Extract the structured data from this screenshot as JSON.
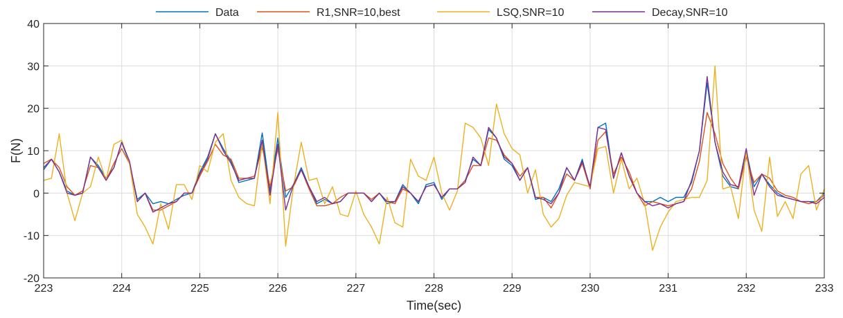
{
  "chart_data": {
    "type": "line",
    "xlabel": "Time(sec)",
    "ylabel": "F(N)",
    "xlim": [
      223,
      233
    ],
    "ylim": [
      -20,
      40
    ],
    "x_ticks": [
      223,
      224,
      225,
      226,
      227,
      228,
      229,
      230,
      231,
      232,
      233
    ],
    "y_ticks": [
      -20,
      -10,
      0,
      10,
      20,
      30,
      40
    ],
    "grid": true,
    "legend_position": "top",
    "x": [
      223.0,
      223.1,
      223.2,
      223.3,
      223.4,
      223.5,
      223.6,
      223.7,
      223.8,
      223.9,
      224.0,
      224.1,
      224.2,
      224.3,
      224.4,
      224.5,
      224.6,
      224.7,
      224.8,
      224.9,
      225.0,
      225.1,
      225.2,
      225.3,
      225.4,
      225.5,
      225.6,
      225.7,
      225.8,
      225.9,
      226.0,
      226.1,
      226.2,
      226.3,
      226.4,
      226.5,
      226.6,
      226.7,
      226.8,
      226.9,
      227.0,
      227.1,
      227.2,
      227.3,
      227.4,
      227.5,
      227.6,
      227.7,
      227.8,
      227.9,
      228.0,
      228.1,
      228.2,
      228.3,
      228.4,
      228.5,
      228.6,
      228.7,
      228.8,
      228.9,
      229.0,
      229.1,
      229.2,
      229.3,
      229.4,
      229.5,
      229.6,
      229.7,
      229.8,
      229.9,
      230.0,
      230.1,
      230.2,
      230.3,
      230.4,
      230.5,
      230.6,
      230.7,
      230.8,
      230.9,
      231.0,
      231.1,
      231.2,
      231.3,
      231.4,
      231.5,
      231.6,
      231.7,
      231.8,
      231.9,
      232.0,
      232.1,
      232.2,
      232.3,
      232.4,
      232.5,
      232.6,
      232.7,
      232.8,
      232.9,
      233.0
    ],
    "series": [
      {
        "name": "Data",
        "color": "#0072BD",
        "values": [
          5.5,
          8,
          5,
          0.5,
          -0.5,
          0,
          8.5,
          6.5,
          3.5,
          6,
          12,
          7,
          -1.5,
          0,
          -2.5,
          -2,
          -2.5,
          -1.5,
          -0.5,
          0,
          5,
          8.5,
          14,
          10.5,
          7.5,
          2.5,
          3,
          3.5,
          14.2,
          0.5,
          13,
          -1,
          2,
          6,
          1.5,
          -2.5,
          -1.5,
          -2.5,
          -2,
          0,
          0,
          0,
          -2,
          0,
          -2.5,
          -2,
          2,
          0,
          -2.5,
          2,
          2.5,
          -1.5,
          1,
          1,
          3,
          8,
          6.5,
          15,
          13,
          8,
          6.5,
          3,
          6,
          -1.5,
          -1,
          -2,
          1,
          6,
          3,
          8,
          1,
          15.5,
          16.5,
          3.5,
          9.5,
          4,
          0,
          -2,
          -2,
          -1,
          -2,
          -1,
          -1,
          2.5,
          10,
          26,
          12,
          4,
          1.5,
          1,
          10,
          1.5,
          4.5,
          2,
          0,
          -1,
          -1.5,
          -2,
          -2,
          -2,
          0
        ]
      },
      {
        "name": "R1,SNR=10,best",
        "color": "#D95319",
        "values": [
          7,
          8,
          6,
          1.5,
          -0.5,
          0.5,
          6.5,
          6,
          3,
          7,
          10.5,
          7,
          -2,
          0,
          -4,
          -4,
          -3,
          -2,
          0,
          0,
          4,
          7.5,
          11.5,
          9,
          8,
          3.5,
          3.5,
          4,
          10.8,
          1.5,
          10.5,
          0.5,
          1.5,
          5.5,
          1,
          -3,
          -3,
          -2.5,
          -1,
          0,
          0,
          0,
          -1.5,
          0,
          -2,
          -2.5,
          1,
          0,
          -2,
          1.5,
          2,
          -1,
          1,
          1,
          3,
          6.5,
          6.5,
          13,
          12.5,
          9,
          7,
          4,
          6,
          -1,
          -1,
          -3.5,
          0,
          4.5,
          3,
          7,
          1,
          12.5,
          14.5,
          4.5,
          8.5,
          5,
          0,
          -3,
          -2,
          -2.5,
          -3,
          -2.5,
          -2,
          1,
          7.5,
          19,
          14,
          7,
          3.5,
          1,
          8.5,
          2.5,
          4.5,
          3.5,
          0.5,
          -0.5,
          -1,
          -2,
          -2.5,
          -2,
          -0.5
        ]
      },
      {
        "name": "LSQ,SNR=10",
        "color": "#EDB120",
        "values": [
          3,
          3.5,
          14,
          0,
          -6.5,
          0,
          1.5,
          8.5,
          3,
          11.5,
          12.5,
          7,
          -5,
          -8,
          -12,
          -2.5,
          -8.5,
          2,
          2,
          -1.5,
          6.5,
          5,
          12,
          14,
          3,
          -1,
          -2.5,
          -3,
          12,
          -2.5,
          19,
          -12.5,
          1.5,
          12,
          3,
          3.5,
          -2.5,
          1.5,
          -5,
          -5.5,
          0.5,
          -5,
          -8,
          -12,
          -1,
          -7,
          -8,
          8,
          4,
          3,
          8.5,
          0,
          -4,
          0.5,
          16.5,
          15.5,
          13,
          6.5,
          21,
          14,
          10.5,
          9,
          0,
          5.5,
          -5,
          -8,
          -6,
          -0.5,
          2.5,
          2,
          1.5,
          10.5,
          11,
          0,
          8,
          1,
          3.5,
          -2.5,
          -13.5,
          -8,
          -4.5,
          -2,
          -1.5,
          -1,
          -1,
          3,
          30,
          1,
          1.5,
          -6,
          10,
          -4,
          -9,
          8.5,
          -5.5,
          -2,
          -6,
          4.5,
          6.5,
          -4,
          1
        ]
      },
      {
        "name": "Decay,SNR=10",
        "color": "#7E2F8E",
        "values": [
          6,
          8,
          5,
          0,
          -0.5,
          0,
          8.5,
          6,
          3,
          6,
          12,
          7.5,
          -2,
          0,
          -4.5,
          -3.5,
          -2.5,
          -2,
          0,
          0,
          4.5,
          8,
          14,
          10,
          7,
          3,
          3.5,
          3.5,
          12.5,
          -0.5,
          11.5,
          -4,
          2,
          5.5,
          1.5,
          -2,
          -1,
          -2.5,
          -2,
          0,
          0,
          0,
          -2,
          0,
          -2,
          -2,
          1.5,
          0,
          -2,
          1.5,
          2,
          -1,
          1,
          1,
          2.5,
          8.5,
          6.5,
          15.5,
          13,
          8.5,
          7,
          3,
          6,
          -1,
          -1.5,
          -2.5,
          0,
          6,
          3,
          7.5,
          1.5,
          15.5,
          15,
          3.5,
          9.5,
          4,
          0,
          -2,
          -3,
          -2.5,
          -3.5,
          -2.5,
          -2,
          3,
          10,
          27.5,
          12,
          5,
          2,
          1.5,
          10.5,
          -0.5,
          4.5,
          1.5,
          -0.5,
          -1,
          -1.5,
          -2,
          -2,
          -2.5,
          -1
        ]
      }
    ]
  }
}
